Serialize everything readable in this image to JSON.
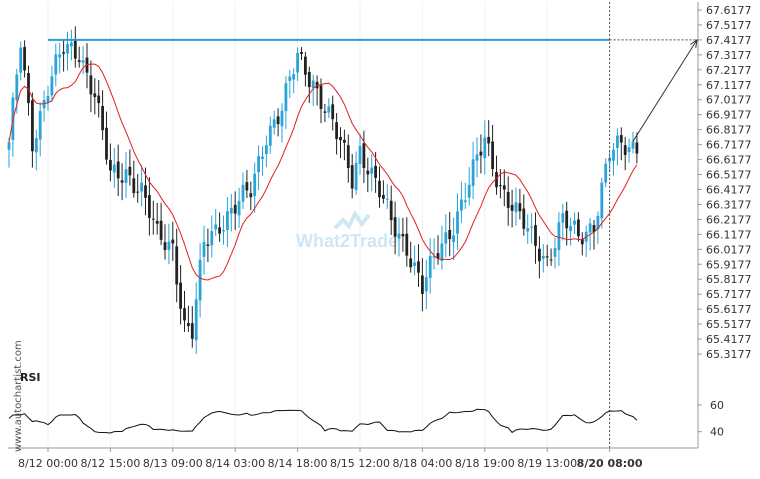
{
  "chart_data": {
    "type": "candlestick",
    "colors": {
      "up": "#2aa3d8",
      "down": "#222222",
      "ma": "#e02020",
      "resistance": "#2b9bd8",
      "rsi": "#111111",
      "arrow": "#333333"
    },
    "price_axis": {
      "ticks": [
        "67.6177",
        "67.5177",
        "67.4177",
        "67.3177",
        "67.2177",
        "67.1177",
        "67.0177",
        "66.9177",
        "66.8177",
        "66.7177",
        "66.6177",
        "66.5177",
        "66.4177",
        "66.3177",
        "66.2177",
        "66.1177",
        "66.0177",
        "65.9177",
        "65.8177",
        "65.7177",
        "65.6177",
        "65.5177",
        "65.4177",
        "65.3177"
      ],
      "range": [
        65.2977,
        67.6577
      ]
    },
    "time_axis": {
      "labels": [
        "8/12 00:00",
        "8/12 15:00",
        "8/13 09:00",
        "8/14 03:00",
        "8/14 18:00",
        "8/15 12:00",
        "8/18 04:00",
        "8/18 19:00",
        "8/19 13:00",
        "8/20 08:00"
      ],
      "label_indices": [
        10,
        26,
        42,
        58,
        74,
        90,
        106,
        122,
        138,
        154
      ],
      "highlight": "8/20 08:00"
    },
    "resistance_level": 67.4177,
    "resistance_start_index": 10,
    "vertical_marker_index": 154,
    "projection_target": 67.4177,
    "rsi": {
      "label": "RSI",
      "ticks": [
        "60",
        "40"
      ],
      "range": [
        30,
        75
      ]
    },
    "watermark_text": "What2Trade",
    "side_text": "www.autochartist.com"
  }
}
